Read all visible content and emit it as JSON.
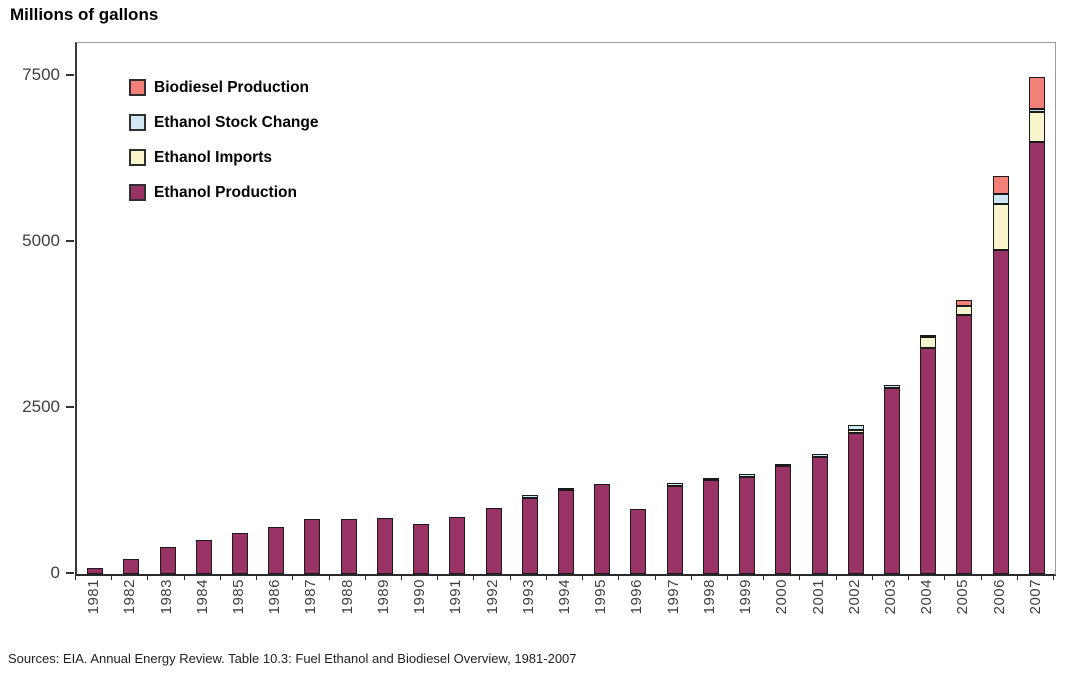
{
  "title": "Millions of gallons",
  "source_note": "Sources:  EIA. Annual Energy Review. Table 10.3: Fuel Ethanol and Biodiesel Overview, 1981-2007",
  "colors": {
    "ethanol_production": "#993366",
    "ethanol_imports": "#F8F4CD",
    "ethanol_stock_change": "#CFE7F2",
    "biodiesel_production": "#F28078",
    "segment_border": "#1a1a1a",
    "axis_line": "#333333",
    "frame_line": "#9a9a9a",
    "tick_label": "#3f3f3f"
  },
  "legend": {
    "items": [
      {
        "label": "Biodiesel Production",
        "color": "#F28078"
      },
      {
        "label": "Ethanol Stock Change",
        "color": "#CFE7F2"
      },
      {
        "label": "Ethanol Imports",
        "color": "#F8F4CD"
      },
      {
        "label": "Ethanol Production",
        "color": "#993366"
      }
    ]
  },
  "chart_data": {
    "type": "bar",
    "stacked": true,
    "title": "Millions of gallons",
    "unit": "million gallons",
    "xlabel": "",
    "ylabel": "Millions of gallons",
    "yticks": [
      0,
      2500,
      5000,
      7500
    ],
    "ylim": [
      0,
      8000
    ],
    "grid": false,
    "legend_position": "top-left-inside",
    "categories": [
      "1981",
      "1982",
      "1983",
      "1984",
      "1985",
      "1986",
      "1987",
      "1988",
      "1989",
      "1990",
      "1991",
      "1992",
      "1993",
      "1994",
      "1995",
      "1996",
      "1997",
      "1998",
      "1999",
      "2000",
      "2001",
      "2002",
      "2003",
      "2004",
      "2005",
      "2006",
      "2007"
    ],
    "series": [
      {
        "name": "Ethanol Production",
        "color_key": "ethanol_production",
        "values": [
          85,
          220,
          400,
          510,
          615,
          710,
          825,
          830,
          845,
          755,
          860,
          995,
          1150,
          1270,
          1350,
          980,
          1330,
          1410,
          1460,
          1625,
          1765,
          2130,
          2800,
          3400,
          3900,
          4880,
          6500
        ]
      },
      {
        "name": "Ethanol Imports",
        "color_key": "ethanol_imports",
        "values": [
          0,
          0,
          0,
          0,
          0,
          0,
          0,
          0,
          0,
          0,
          0,
          0,
          0,
          0,
          0,
          0,
          0,
          0,
          0,
          0,
          0,
          45,
          0,
          160,
          130,
          690,
          450
        ]
      },
      {
        "name": "Ethanol Stock Change",
        "color_key": "ethanol_stock_change",
        "values": [
          0,
          0,
          0,
          0,
          0,
          0,
          0,
          0,
          0,
          0,
          0,
          0,
          45,
          25,
          0,
          0,
          40,
          20,
          45,
          15,
          40,
          70,
          40,
          0,
          0,
          150,
          50
        ]
      },
      {
        "name": "Biodiesel Production",
        "color_key": "biodiesel_production",
        "values": [
          0,
          0,
          0,
          0,
          0,
          0,
          0,
          0,
          0,
          0,
          0,
          0,
          0,
          0,
          0,
          0,
          0,
          0,
          0,
          0,
          0,
          0,
          0,
          25,
          95,
          270,
          485
        ]
      }
    ]
  }
}
